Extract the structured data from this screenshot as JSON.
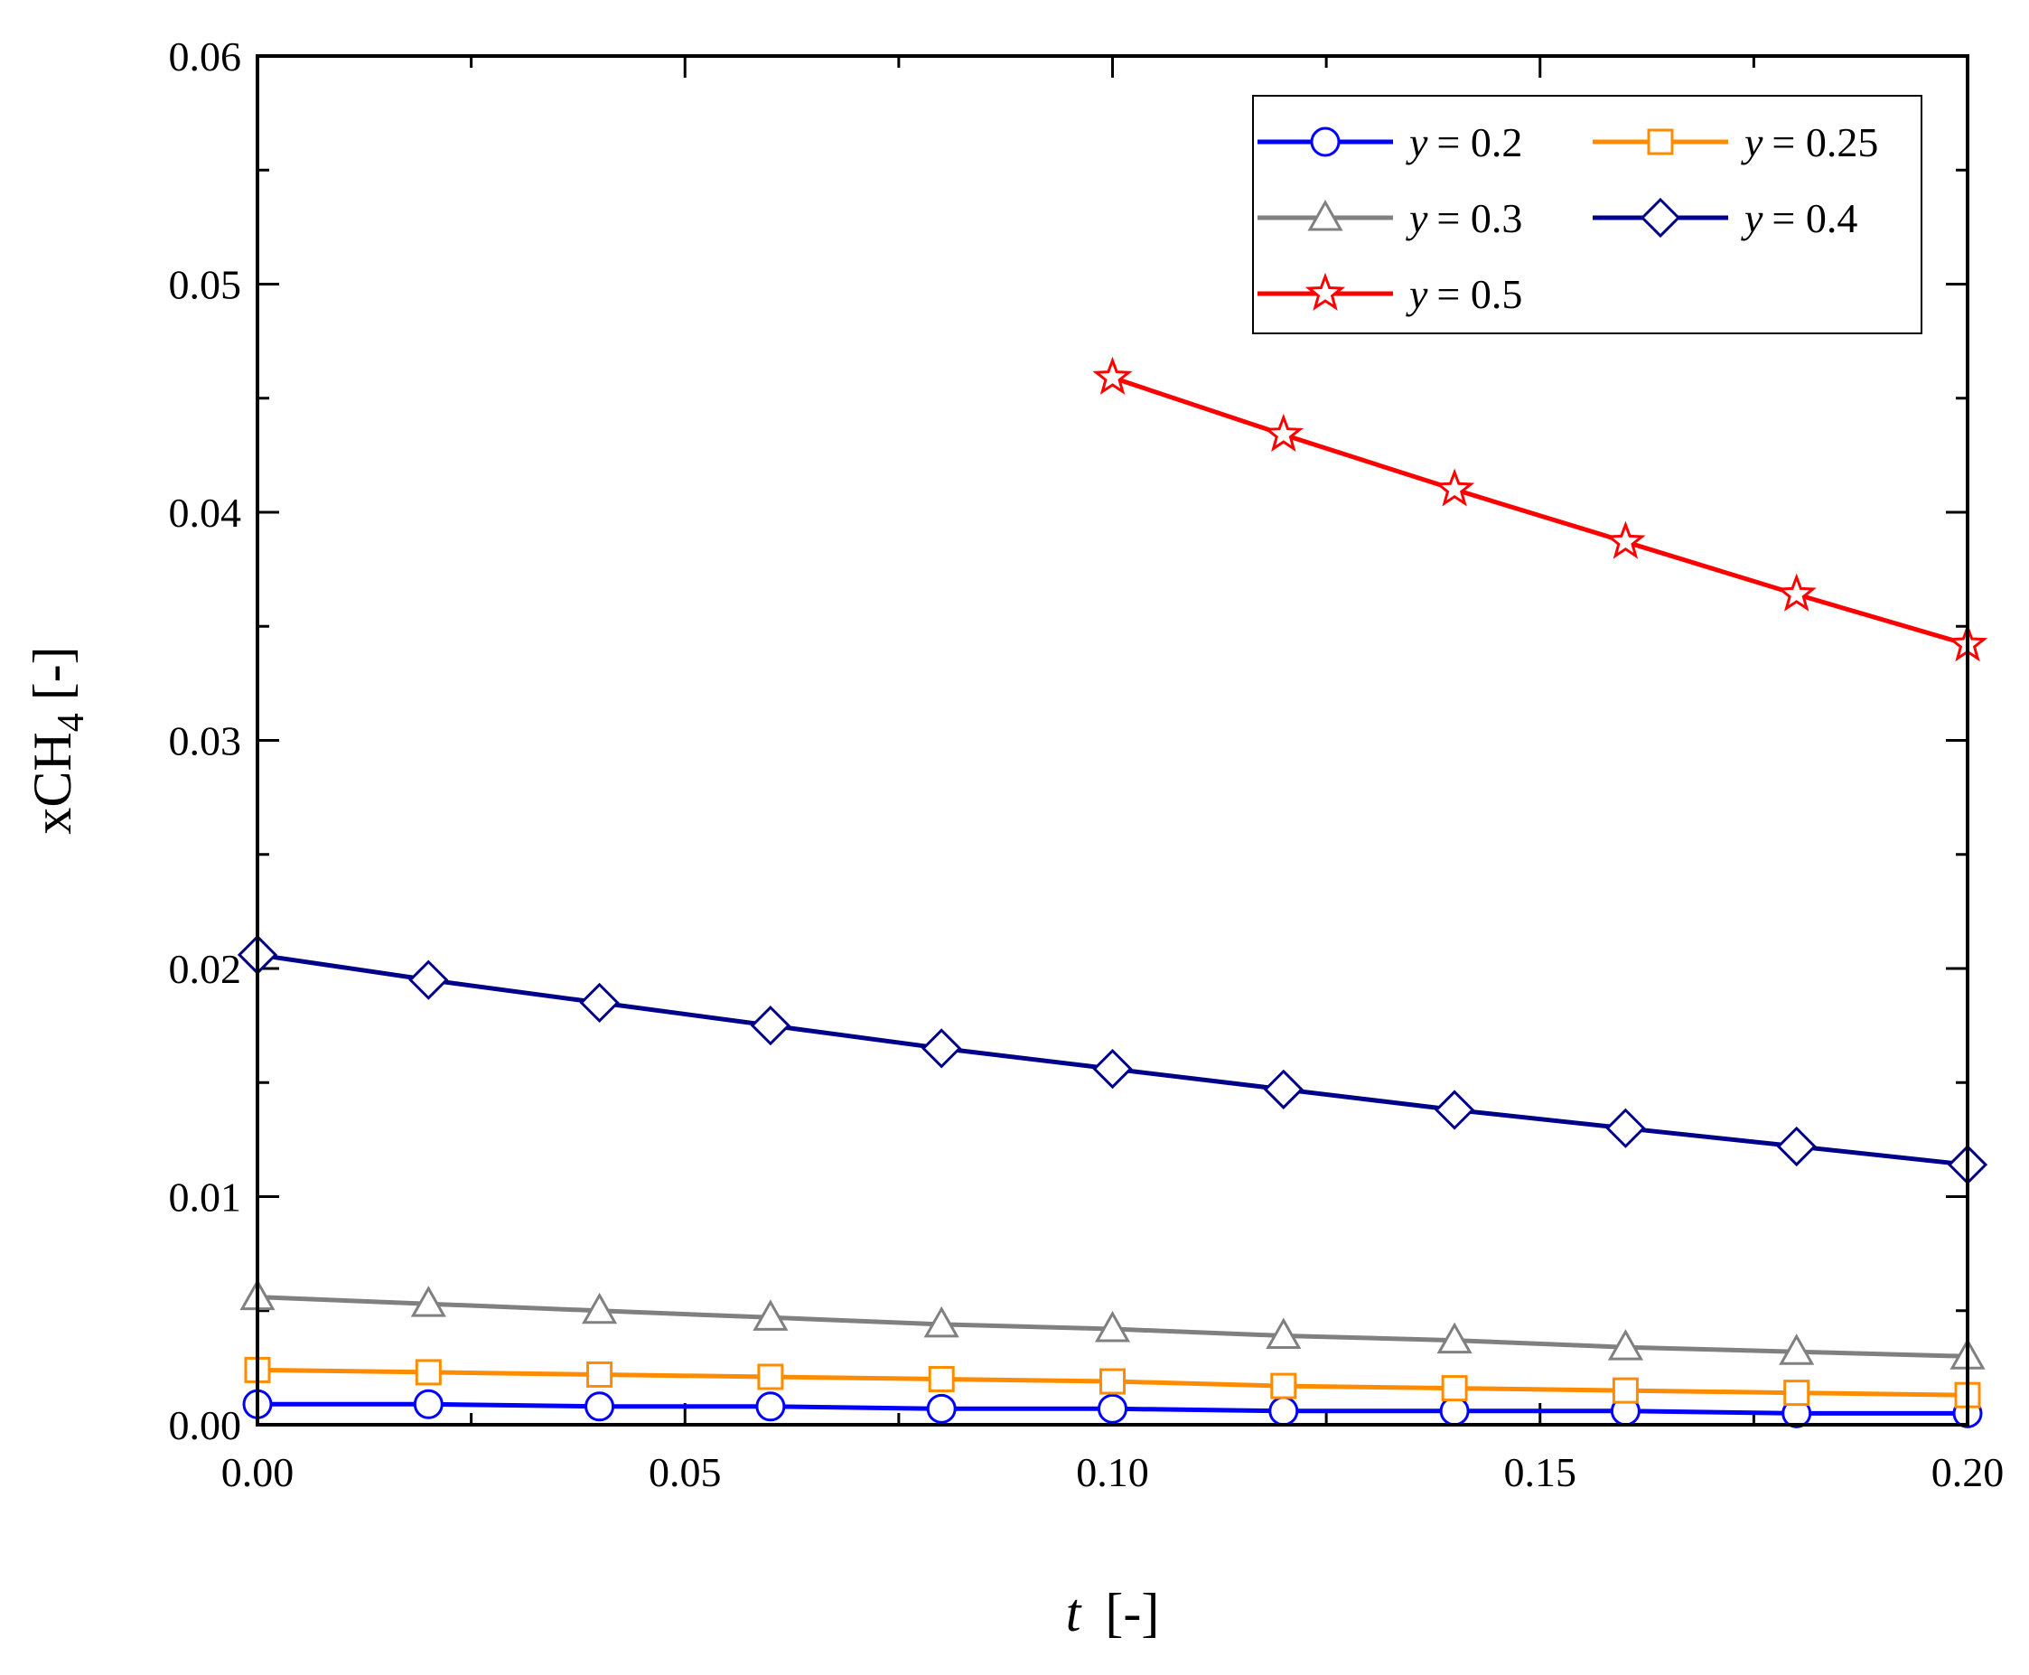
{
  "chart_data": {
    "type": "line",
    "title": "",
    "xlabel": "t [-]",
    "xlabel_var": "t",
    "xlabel_unit": "[-]",
    "ylabel": "xCH4 [-]",
    "ylabel_main": "xCH",
    "ylabel_sub": "4",
    "ylabel_unit": "[-]",
    "xlim": [
      0,
      0.2
    ],
    "ylim": [
      0,
      0.06
    ],
    "xticks": [
      "0.00",
      "0.05",
      "0.10",
      "0.15",
      "0.20"
    ],
    "yticks": [
      "0.00",
      "0.01",
      "0.02",
      "0.03",
      "0.04",
      "0.05",
      "0.06"
    ],
    "grid": false,
    "legend_position": "top-right",
    "series": [
      {
        "name": "y = 0.2",
        "legend_var": "y",
        "legend_value": "= 0.2",
        "color": "#0000ff",
        "marker": "circle",
        "x": [
          0,
          0.02,
          0.04,
          0.06,
          0.08,
          0.1,
          0.12,
          0.14,
          0.16,
          0.18,
          0.2
        ],
        "values": [
          0.0009,
          0.0009,
          0.0008,
          0.0008,
          0.0007,
          0.0007,
          0.0006,
          0.0006,
          0.0006,
          0.0005,
          0.0005
        ]
      },
      {
        "name": "y = 0.25",
        "legend_var": "y",
        "legend_value": "= 0.25",
        "color": "#ff8c00",
        "marker": "square",
        "x": [
          0,
          0.02,
          0.04,
          0.06,
          0.08,
          0.1,
          0.12,
          0.14,
          0.16,
          0.18,
          0.2
        ],
        "values": [
          0.0024,
          0.0023,
          0.0022,
          0.0021,
          0.002,
          0.0019,
          0.0017,
          0.0016,
          0.0015,
          0.0014,
          0.0013
        ]
      },
      {
        "name": "y = 0.3",
        "legend_var": "y",
        "legend_value": "= 0.3",
        "color": "#808080",
        "marker": "triangle",
        "x": [
          0,
          0.02,
          0.04,
          0.06,
          0.08,
          0.1,
          0.12,
          0.14,
          0.16,
          0.18,
          0.2
        ],
        "values": [
          0.0056,
          0.0053,
          0.005,
          0.0047,
          0.0044,
          0.0042,
          0.0039,
          0.0037,
          0.0034,
          0.0032,
          0.003
        ]
      },
      {
        "name": "y = 0.4",
        "legend_var": "y",
        "legend_value": "= 0.4",
        "color": "#00008b",
        "marker": "diamond",
        "x": [
          0,
          0.02,
          0.04,
          0.06,
          0.08,
          0.1,
          0.12,
          0.14,
          0.16,
          0.18,
          0.2
        ],
        "values": [
          0.0206,
          0.0195,
          0.0185,
          0.0175,
          0.0165,
          0.0156,
          0.0147,
          0.0138,
          0.013,
          0.0122,
          0.0114
        ]
      },
      {
        "name": "y = 0.5",
        "legend_var": "y",
        "legend_value": "= 0.5",
        "color": "#ff0000",
        "marker": "star",
        "x": [
          0.1,
          0.12,
          0.14,
          0.16,
          0.18,
          0.2
        ],
        "values": [
          0.0459,
          0.0434,
          0.041,
          0.0387,
          0.0364,
          0.0342
        ]
      }
    ]
  }
}
